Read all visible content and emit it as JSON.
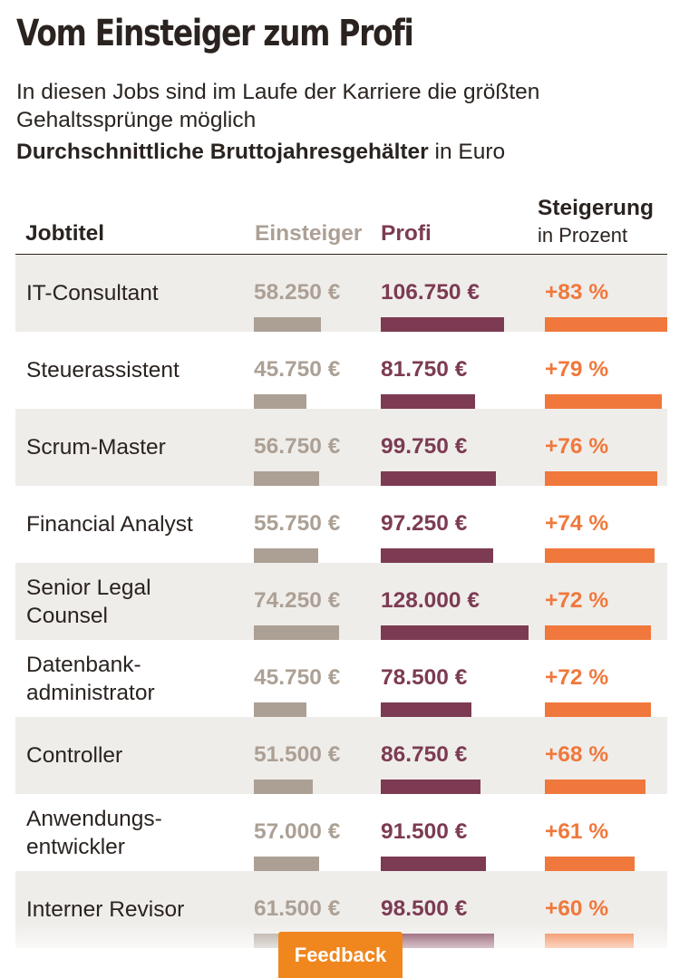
{
  "title": "Vom Einsteiger zum Profi",
  "subtitle": "In diesen Jobs sind im Laufe der Karriere die größten Gehaltssprünge möglich",
  "caption_bold": "Durchschnittliche Bruttojahresgehälter",
  "caption_rest": " in Euro",
  "columns": {
    "job": "Jobtitel",
    "einsteiger": "Einsteiger",
    "profi": "Profi",
    "steigerung": "Steigerung",
    "steigerung_unit": "in Prozent"
  },
  "colors": {
    "einsteiger": "#aca095",
    "profi": "#7c3b53",
    "steigerung": "#f0783c",
    "row_shade": "#efedea",
    "feedback": "#f0861e"
  },
  "feedback_label": "Feedback",
  "chart_data": {
    "type": "table",
    "columns": [
      "Jobtitel",
      "Einsteiger",
      "Profi",
      "Steigerung"
    ],
    "rows": [
      {
        "job": "IT-Consultant",
        "einsteiger": 58250,
        "einsteiger_label": "58.250 €",
        "profi": 106750,
        "profi_label": "106.750 €",
        "steigerung": 83,
        "steigerung_label": "+83 %"
      },
      {
        "job": "Steuerassistent",
        "einsteiger": 45750,
        "einsteiger_label": "45.750 €",
        "profi": 81750,
        "profi_label": "81.750 €",
        "steigerung": 79,
        "steigerung_label": "+79 %"
      },
      {
        "job": "Scrum-Master",
        "einsteiger": 56750,
        "einsteiger_label": "56.750 €",
        "profi": 99750,
        "profi_label": "99.750 €",
        "steigerung": 76,
        "steigerung_label": "+76 %"
      },
      {
        "job": "Financial Analyst",
        "einsteiger": 55750,
        "einsteiger_label": "55.750 €",
        "profi": 97250,
        "profi_label": "97.250 €",
        "steigerung": 74,
        "steigerung_label": "+74 %"
      },
      {
        "job": "Senior Legal\nCounsel",
        "einsteiger": 74250,
        "einsteiger_label": "74.250 €",
        "profi": 128000,
        "profi_label": "128.000 €",
        "steigerung": 72,
        "steigerung_label": "+72 %"
      },
      {
        "job": "Datenbank-\nadministrator",
        "einsteiger": 45750,
        "einsteiger_label": "45.750 €",
        "profi": 78500,
        "profi_label": "78.500 €",
        "steigerung": 72,
        "steigerung_label": "+72 %"
      },
      {
        "job": "Controller",
        "einsteiger": 51500,
        "einsteiger_label": "51.500 €",
        "profi": 86750,
        "profi_label": "86.750 €",
        "steigerung": 68,
        "steigerung_label": "+68 %"
      },
      {
        "job": "Anwendungs-\nentwickler",
        "einsteiger": 57000,
        "einsteiger_label": "57.000 €",
        "profi": 91500,
        "profi_label": "91.500 €",
        "steigerung": 61,
        "steigerung_label": "+61 %"
      },
      {
        "job": "Interner Revisor",
        "einsteiger": 61500,
        "einsteiger_label": "61.500 €",
        "profi": 98500,
        "profi_label": "98.500 €",
        "steigerung": 60,
        "steigerung_label": "+60 %"
      }
    ]
  }
}
